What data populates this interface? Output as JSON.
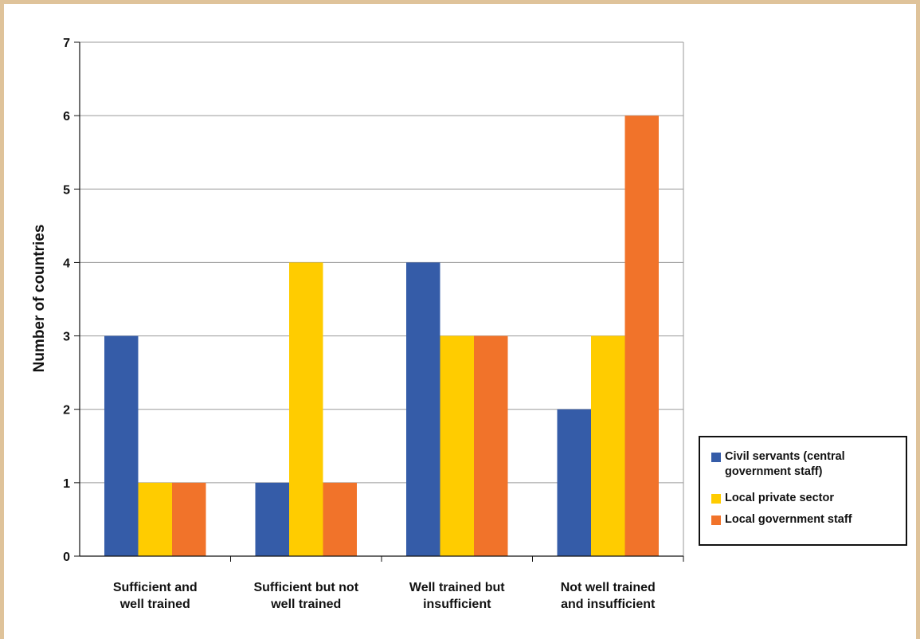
{
  "colors": {
    "frame": "#dfc39a",
    "grid": "#9a9a9a",
    "civil": "#355ca8",
    "private": "#ffcc00",
    "localgov": "#f1732a"
  },
  "chart_data": {
    "type": "bar",
    "title": "",
    "xlabel": "",
    "ylabel": "Number of countries",
    "ylim": [
      0,
      7
    ],
    "yticks": [
      "0",
      "1",
      "2",
      "3",
      "4",
      "5",
      "6",
      "7"
    ],
    "grid": true,
    "legend_position": "right-bottom",
    "categories": [
      [
        "Sufficient and",
        "well trained"
      ],
      [
        "Sufficient but not",
        "well trained"
      ],
      [
        "Well trained but",
        "insufficient"
      ],
      [
        "Not well trained",
        "and insufficient"
      ]
    ],
    "series": [
      {
        "name": "Civil servants (central government staff)",
        "legend_lines": [
          "Civil servants (central",
          "government staff)"
        ],
        "color": "#355ca8",
        "values": [
          3,
          1,
          4,
          2
        ]
      },
      {
        "name": "Local private sector",
        "legend_lines": [
          "Local private sector"
        ],
        "color": "#ffcc00",
        "values": [
          1,
          4,
          3,
          3
        ]
      },
      {
        "name": "Local government staff",
        "legend_lines": [
          "Local government staff"
        ],
        "color": "#f1732a",
        "values": [
          1,
          1,
          3,
          6
        ]
      }
    ]
  }
}
